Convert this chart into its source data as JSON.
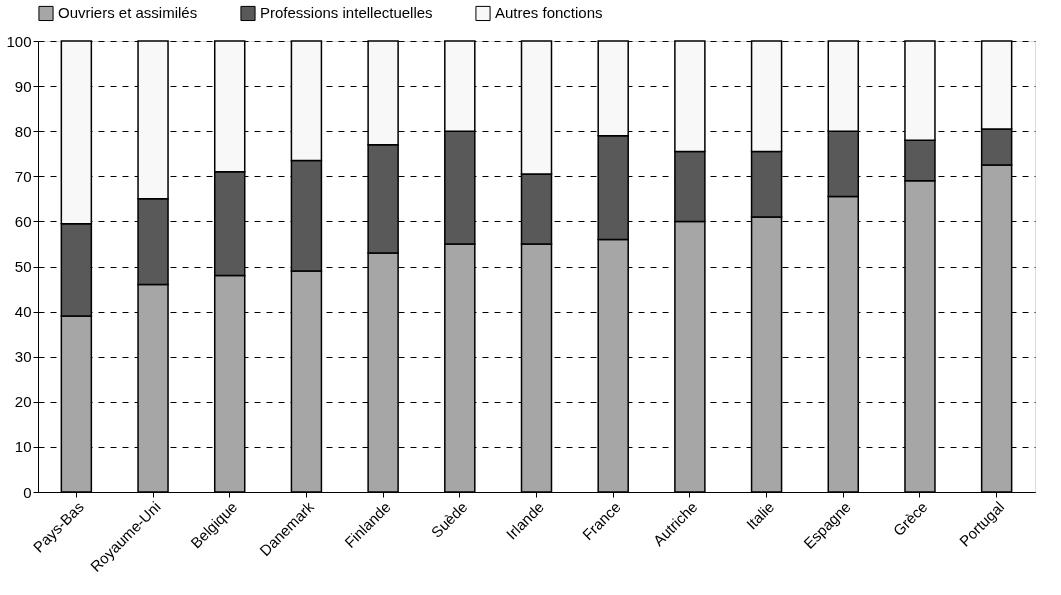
{
  "chart_data": {
    "type": "bar",
    "stacked": true,
    "categories": [
      "Pays-Bas",
      "Royaume-Uni",
      "Belgique",
      "Danemark",
      "Finlande",
      "Suède",
      "Irlande",
      "France",
      "Autriche",
      "Italie",
      "Espagne",
      "Grèce",
      "Portugal"
    ],
    "series": [
      {
        "name": "Ouvriers et assimilés",
        "color": "#a6a6a6",
        "values": [
          39,
          46,
          48,
          49,
          53,
          55,
          55,
          56,
          60,
          61,
          65.5,
          69,
          72.5
        ]
      },
      {
        "name": "Professions intellectuelles",
        "color": "#595959",
        "values": [
          20.5,
          19,
          23,
          24.5,
          24,
          25,
          15.5,
          23,
          15.5,
          14.5,
          14.5,
          9,
          8
        ]
      },
      {
        "name": "Autres fonctions",
        "color": "#f8f8f8",
        "values": [
          40.5,
          35,
          29,
          26.5,
          23,
          20,
          29.5,
          21,
          24.5,
          24.5,
          20,
          22,
          19.5
        ]
      }
    ],
    "ylim": [
      0,
      100
    ],
    "yticks": [
      0,
      10,
      20,
      30,
      40,
      50,
      60,
      70,
      80,
      90,
      100
    ],
    "grid": "y",
    "legend": "top"
  }
}
